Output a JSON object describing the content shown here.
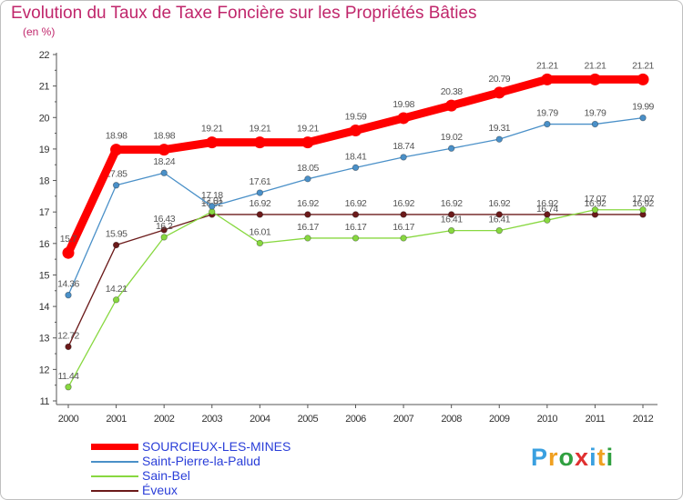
{
  "header": {
    "title": "Evolution du Taux de Taxe Foncière sur les Propriétés Bâties",
    "unit": "(en %)"
  },
  "chart_data": {
    "type": "line",
    "title": "Evolution du Taux de Taxe Foncière sur les Propriétés Bâties",
    "ylabel": "(en %)",
    "xlabel": "",
    "x": [
      "2000",
      "2001",
      "2002",
      "2003",
      "2004",
      "2005",
      "2006",
      "2007",
      "2008",
      "2009",
      "2010",
      "2011",
      "2012"
    ],
    "ylim": [
      11,
      22
    ],
    "yticks": [
      11,
      12,
      13,
      14,
      15,
      16,
      17,
      18,
      19,
      20,
      21,
      22
    ],
    "grid": false,
    "legend": "bottom-left",
    "series": [
      {
        "name": "SOURCIEUX-LES-MINES",
        "color": "#ff0000",
        "labels": [
          "15.7",
          "18.98",
          "18.98",
          "19.21",
          "19.21",
          "19.21",
          "19.59",
          "19.98",
          "20.38",
          "20.79",
          "21.21",
          "21.21",
          "21.21"
        ],
        "values": [
          15.7,
          18.98,
          18.98,
          19.21,
          19.21,
          19.21,
          19.59,
          19.98,
          20.38,
          20.79,
          21.21,
          21.21,
          21.21
        ]
      },
      {
        "name": "Saint-Pierre-la-Palud",
        "color": "#4a90c8",
        "labels": [
          "14.36",
          "17.85",
          "18.24",
          "17.18",
          "17.61",
          "18.05",
          "18.41",
          "18.74",
          "19.02",
          "19.31",
          "19.79",
          "19.79",
          "19.99"
        ],
        "values": [
          14.36,
          17.85,
          18.24,
          17.18,
          17.61,
          18.05,
          18.41,
          18.74,
          19.02,
          19.31,
          19.79,
          19.79,
          19.99
        ]
      },
      {
        "name": "Sain-Bel",
        "color": "#88d840",
        "labels": [
          "11.44",
          "14.21",
          "16.2",
          "17.01",
          "16.01",
          "16.17",
          "16.17",
          "16.17",
          "16.41",
          "16.41",
          "16.74",
          "17.07",
          "17.07"
        ],
        "values": [
          11.44,
          14.21,
          16.2,
          17.01,
          16.01,
          16.17,
          16.17,
          16.17,
          16.41,
          16.41,
          16.74,
          17.07,
          17.07
        ]
      },
      {
        "name": "Éveux",
        "color": "#6b1a1a",
        "labels": [
          "12.72",
          "15.95",
          "16.43",
          "16.92",
          "16.92",
          "16.92",
          "16.92",
          "16.92",
          "16.92",
          "16.92",
          "16.92",
          "16.92",
          "16.92"
        ],
        "values": [
          12.72,
          15.95,
          16.43,
          16.92,
          16.92,
          16.92,
          16.92,
          16.92,
          16.92,
          16.92,
          16.92,
          16.92,
          16.92
        ]
      }
    ]
  },
  "logo": {
    "letters": [
      "P",
      "r",
      "o",
      "x",
      "i",
      "t",
      "i"
    ],
    "colors": [
      "#3aa0e0",
      "#f0a020",
      "#30a040",
      "#e03030",
      "#3aa0e0",
      "#f0a020",
      "#30a040"
    ]
  }
}
